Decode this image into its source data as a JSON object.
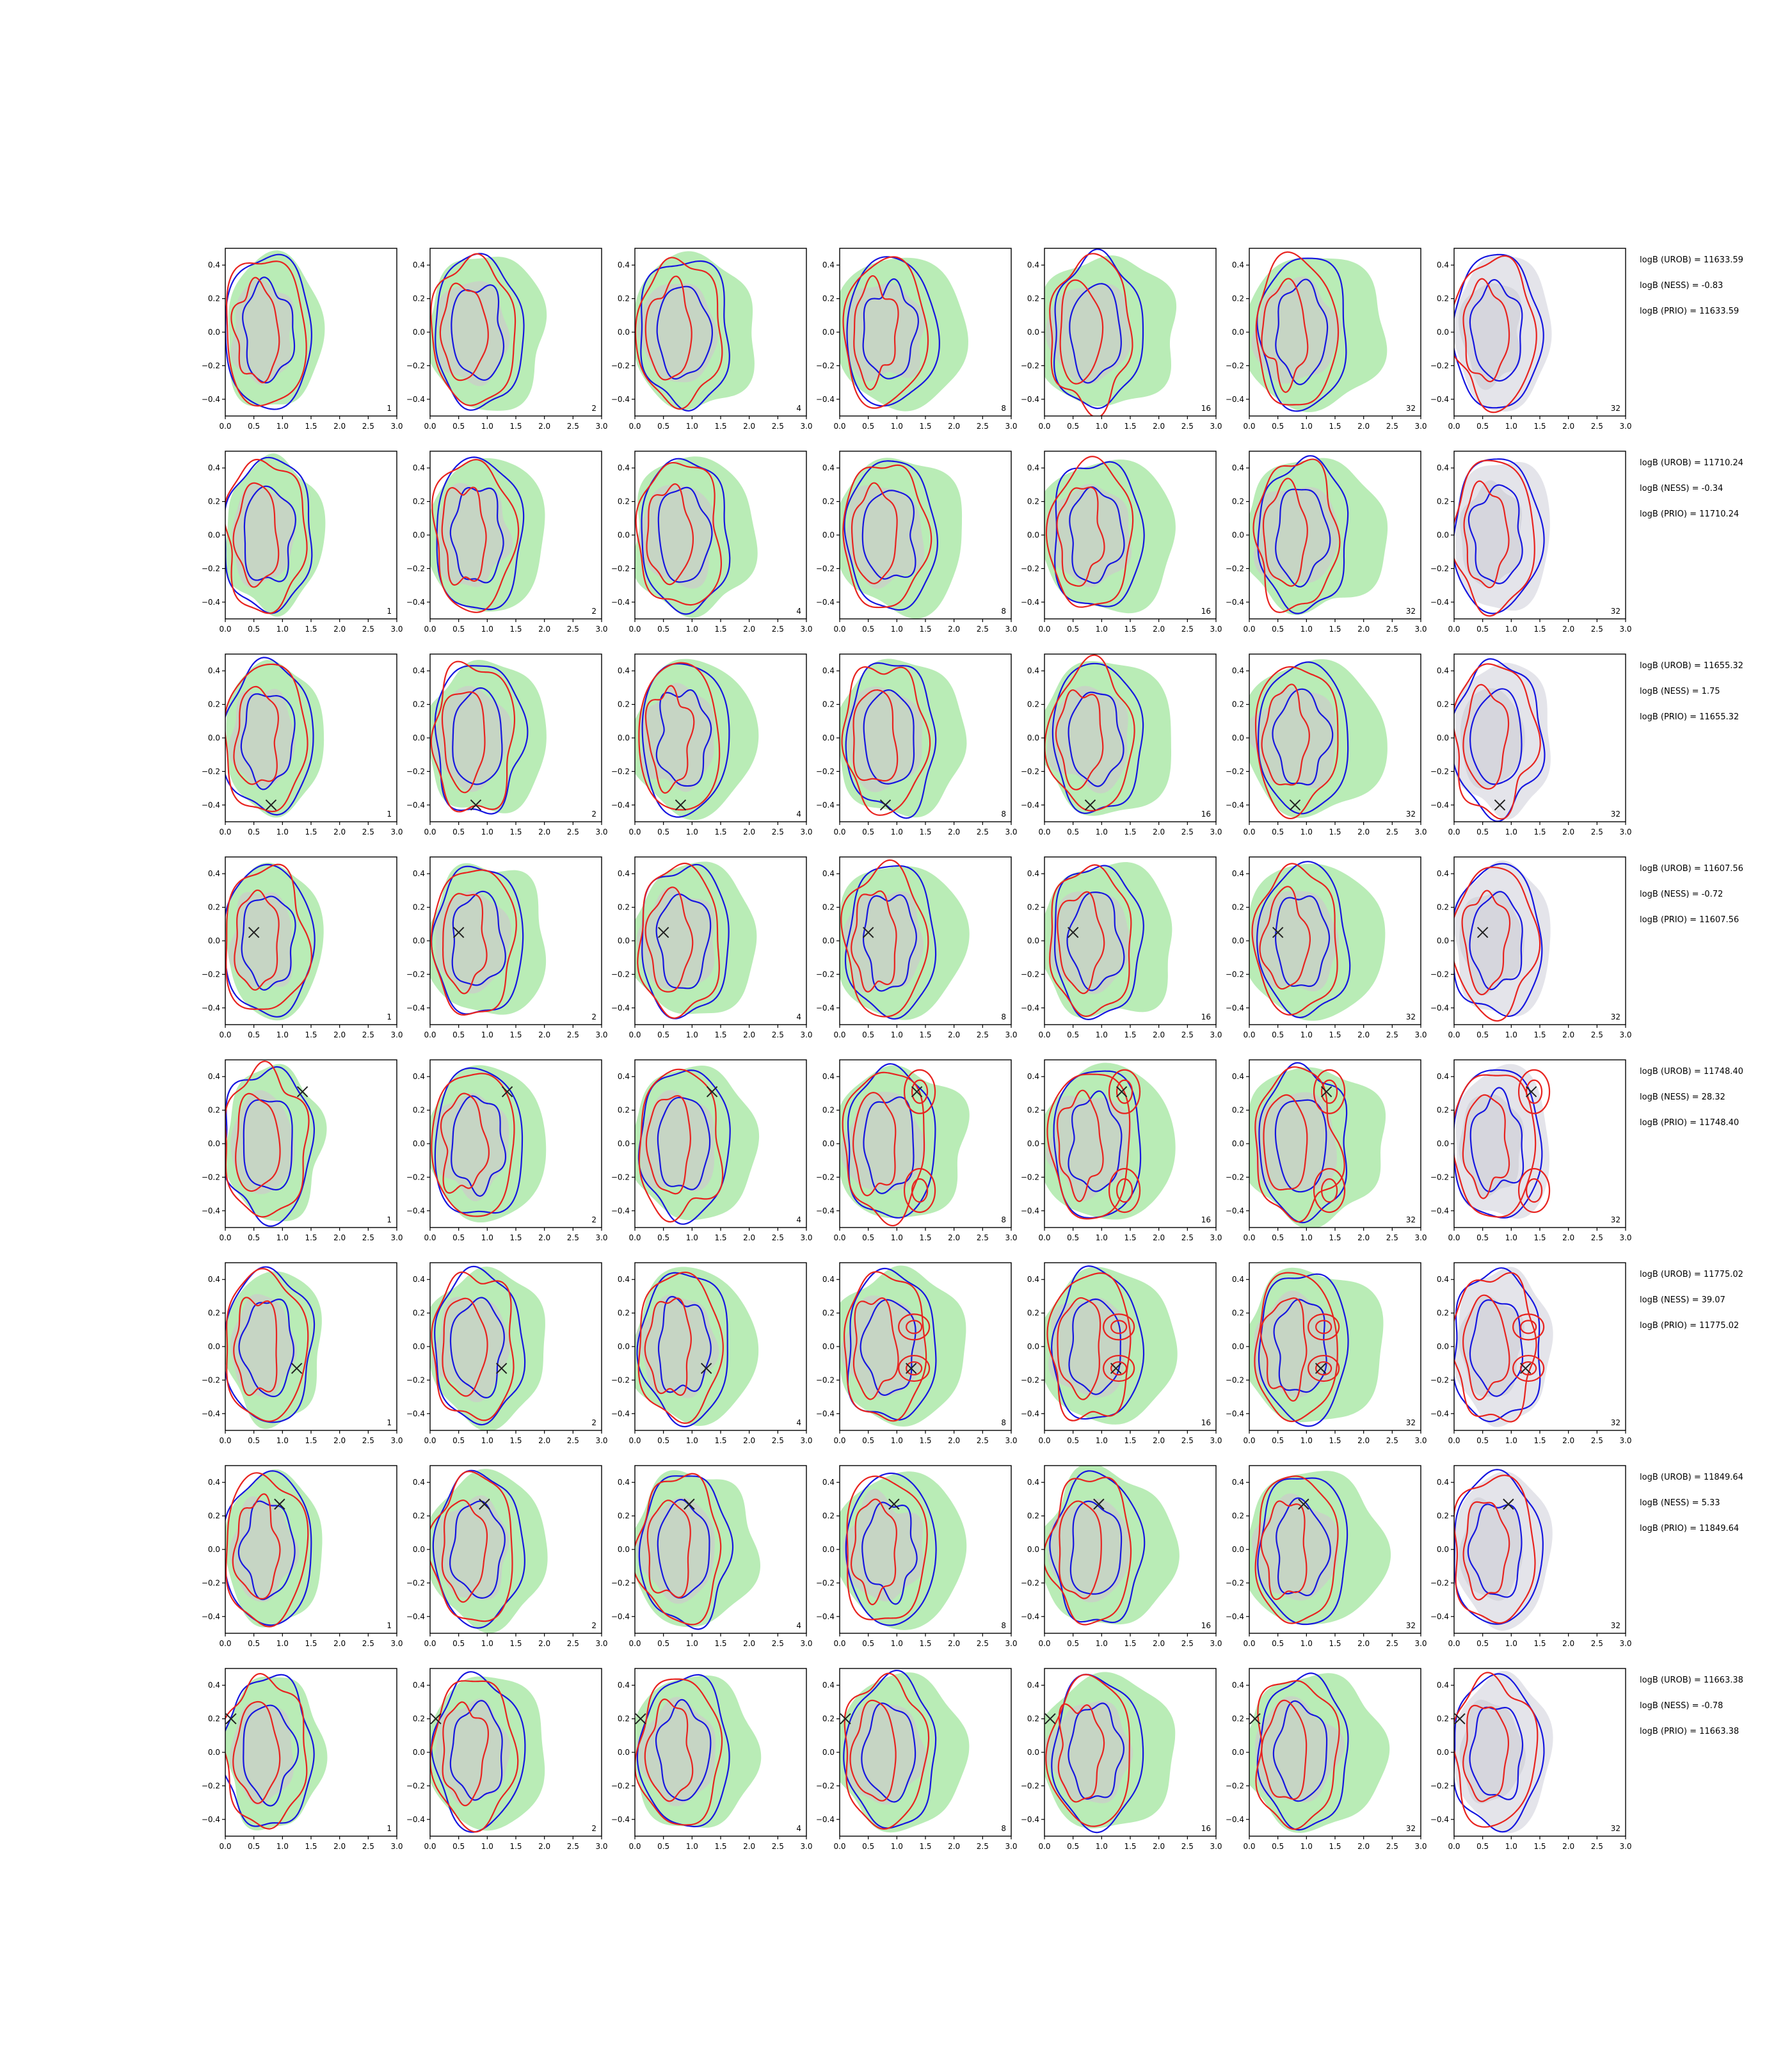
{
  "chart_data": {
    "type": "contour-grid",
    "rows": 8,
    "cols": 7,
    "xlim": [
      0.0,
      3.0
    ],
    "ylim": [
      -0.5,
      0.5
    ],
    "x_ticks": [
      "0.0",
      "0.5",
      "1.0",
      "1.5",
      "2.0",
      "2.5",
      "3.0"
    ],
    "y_ticks": [
      "0.4",
      "0.2",
      "0.0",
      "−0.2",
      "−0.4"
    ],
    "y_tick_values": [
      0.4,
      0.2,
      0.0,
      -0.2,
      -0.4
    ],
    "x_tick_values": [
      0.0,
      0.5,
      1.0,
      1.5,
      2.0,
      2.5,
      3.0
    ],
    "panel_labels": [
      "1",
      "2",
      "4",
      "8",
      "16",
      "32",
      "32"
    ],
    "colors": {
      "outer_fill": "#b9ecb6",
      "inner_fill": "#c6d5c4",
      "grey_outer": "#e4e4ea",
      "grey_inner": "#d6d6dd",
      "red": "#e8231f",
      "blue": "#1616e0",
      "marker": "#222222"
    },
    "stats": [
      [
        "logB (UROB) = 11633.59",
        "logB (NESS) = -0.83",
        "logB (PRIO) = 11633.59"
      ],
      [
        "logB (UROB) = 11710.24",
        "logB (NESS) = -0.34",
        "logB (PRIO) = 11710.24"
      ],
      [
        "logB (UROB) = 11655.32",
        "logB (NESS) = 1.75",
        "logB (PRIO) = 11655.32"
      ],
      [
        "logB (UROB) = 11607.56",
        "logB (NESS) = -0.72",
        "logB (PRIO) = 11607.56"
      ],
      [
        "logB (UROB) = 11748.40",
        "logB (NESS) = 28.32",
        "logB (PRIO) = 11748.40"
      ],
      [
        "logB (UROB) = 11775.02",
        "logB (NESS) = 39.07",
        "logB (PRIO) = 11775.02"
      ],
      [
        "logB (UROB) = 11849.64",
        "logB (NESS) = 5.33",
        "logB (PRIO) = 11849.64"
      ],
      [
        "logB (UROB) = 11663.38",
        "logB (NESS) = -0.78",
        "logB (PRIO) = 11663.38"
      ]
    ],
    "true_points": [
      null,
      null,
      [
        0.8,
        -0.4
      ],
      [
        0.5,
        0.05
      ],
      [
        1.35,
        0.31
      ],
      [
        1.25,
        -0.13
      ],
      [
        0.95,
        0.27
      ],
      [
        0.1,
        0.2
      ]
    ]
  }
}
